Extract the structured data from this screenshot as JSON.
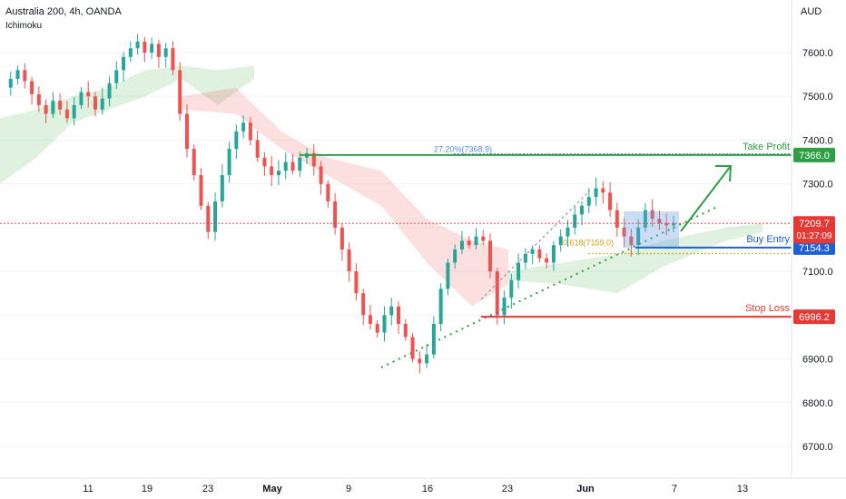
{
  "header": {
    "symbol_line": "Australia 200, 4h, OANDA",
    "indicator": "Ichimoku"
  },
  "currency": "AUD",
  "chart_data": {
    "type": "line",
    "y_ticks": [
      6700.0,
      6800.0,
      6900.0,
      7000.0,
      7100.0,
      7200.0,
      7300.0,
      7400.0,
      7500.0,
      7600.0
    ],
    "y_tick_labels": [
      "6700.0",
      "6800.0",
      "6900.0",
      "7000.0",
      "7100.0",
      "7200.0",
      "7300.0",
      "7400.0",
      "7500.0",
      "7600.0"
    ],
    "ylim": [
      6600,
      7700
    ],
    "x_tick_labels": [
      "11",
      "19",
      "23",
      "May",
      "9",
      "16",
      "23",
      "Jun",
      "7",
      "13"
    ],
    "price_series": [
      7520,
      7540,
      7560,
      7535,
      7505,
      7480,
      7460,
      7490,
      7470,
      7450,
      7480,
      7510,
      7500,
      7470,
      7495,
      7530,
      7560,
      7590,
      7610,
      7625,
      7600,
      7620,
      7590,
      7610,
      7560,
      7460,
      7380,
      7320,
      7250,
      7190,
      7260,
      7320,
      7380,
      7420,
      7440,
      7400,
      7360,
      7340,
      7320,
      7330,
      7350,
      7330,
      7360,
      7370,
      7340,
      7300,
      7260,
      7200,
      7150,
      7100,
      7050,
      7000,
      6980,
      6960,
      7000,
      7020,
      6980,
      6950,
      6900,
      6890,
      6910,
      6980,
      7060,
      7120,
      7150,
      7170,
      7160,
      7180,
      7170,
      7100,
      7000,
      7040,
      7080,
      7120,
      7140,
      7150,
      7130,
      7120,
      7160,
      7180,
      7200,
      7230,
      7250,
      7270,
      7290,
      7280,
      7240,
      7200,
      7180,
      7160,
      7200,
      7240,
      7220,
      7210,
      7205,
      7210
    ],
    "levels": [
      {
        "label": "Take Profit",
        "value": 7366.0,
        "value_label": "7366.0",
        "color": "#2ea043"
      },
      {
        "label": "Buy Entry",
        "value": 7154.3,
        "value_label": "7154.3",
        "color": "#1e5fd6"
      },
      {
        "label": "Stop Loss",
        "value": 6996.2,
        "value_label": "6996.2",
        "color": "#e53935"
      }
    ],
    "current_price": {
      "value": 7209.7,
      "value_label": "7209.7",
      "countdown": "01:27:09",
      "color": "#e53935"
    },
    "fib_annotations": [
      {
        "text": "27.20%(7368.9)",
        "value": 7368.9,
        "color": "#5b8fd6"
      },
      {
        "text": "0.618(7159.0)",
        "value": 7159.0,
        "color": "#d4a017"
      }
    ],
    "trendline_color": "#2ea043",
    "candle_up_color": "#26a69a",
    "candle_down_color": "#ef5350",
    "cloud_up_color": "#4caf50",
    "cloud_down_color": "#ef5350"
  }
}
